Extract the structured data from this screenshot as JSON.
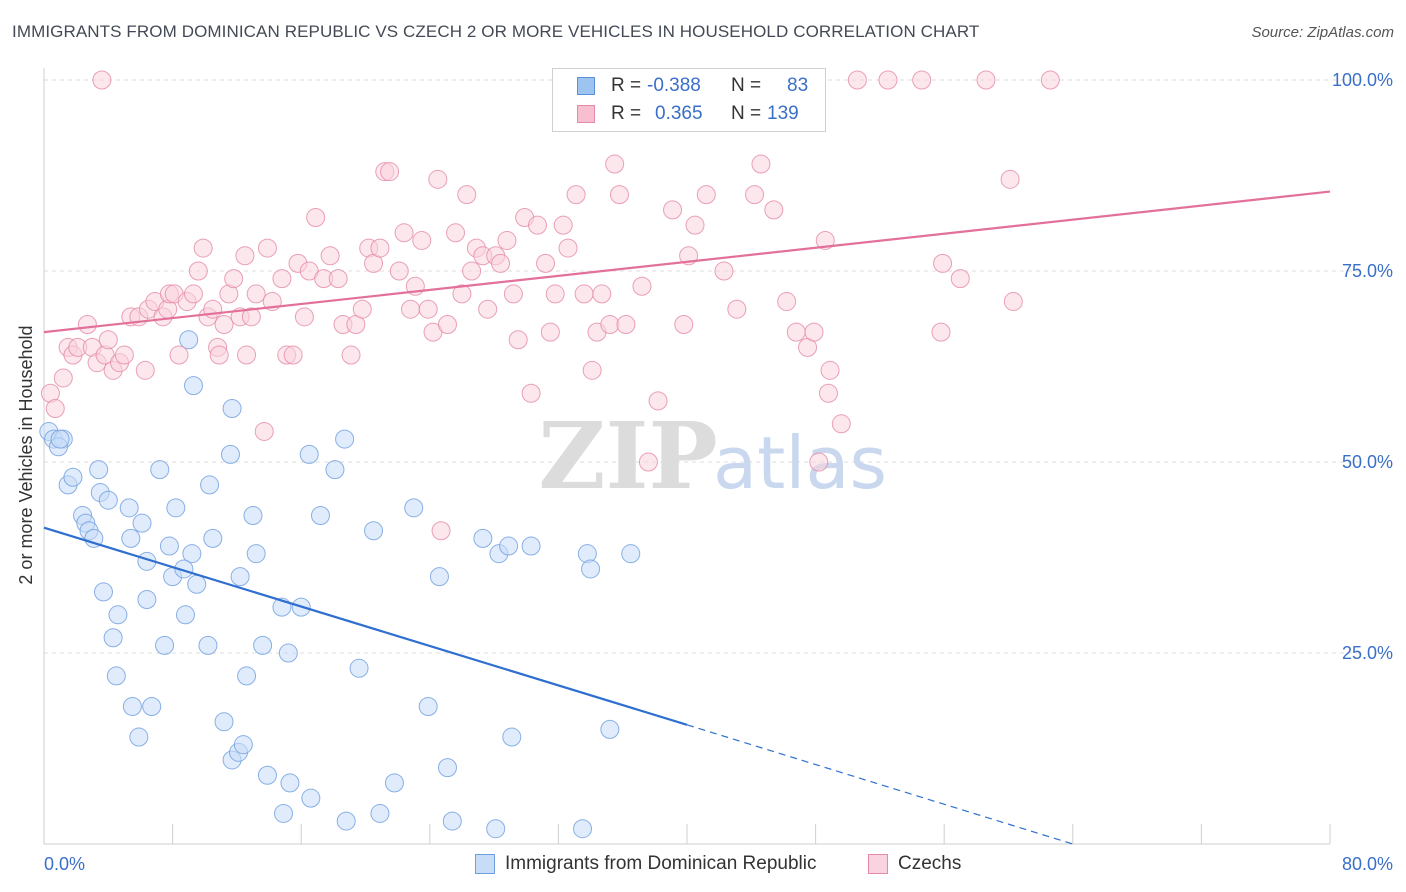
{
  "title": "IMMIGRANTS FROM DOMINICAN REPUBLIC VS CZECH 2 OR MORE VEHICLES IN HOUSEHOLD CORRELATION CHART",
  "source": "Source: ZipAtlas.com",
  "watermark": {
    "zip": "ZIP",
    "atlas": "atlas"
  },
  "legend": {
    "rows": [
      {
        "r_label": "R =",
        "r_value": "-0.388",
        "n_label": "N =",
        "n_value": "83",
        "color": "#9dc3f0",
        "border": "#5b8fd6"
      },
      {
        "r_label": "R =",
        "r_value": "0.365",
        "n_label": "N =",
        "n_value": "139",
        "color": "#f7bfd0",
        "border": "#e58aa6"
      }
    ]
  },
  "bottom_legend": {
    "items": [
      {
        "label": "Immigrants from Dominican Republic",
        "color": "#c6dcf7",
        "border": "#6e9ee0"
      },
      {
        "label": "Czechs",
        "color": "#f9d3df",
        "border": "#e58aa6"
      }
    ]
  },
  "chart_data": {
    "type": "scatter",
    "title": "IMMIGRANTS FROM DOMINICAN REPUBLIC VS CZECH 2 OR MORE VEHICLES IN HOUSEHOLD CORRELATION CHART",
    "xlabel": "",
    "ylabel": "2 or more Vehicles in Household",
    "xlim": [
      0,
      80
    ],
    "ylim": [
      0,
      100
    ],
    "x_tick_labels": [
      "0.0%",
      "80.0%"
    ],
    "y_tick_labels": [
      "25.0%",
      "50.0%",
      "75.0%",
      "100.0%"
    ],
    "y_ticks": [
      25,
      50,
      75,
      100
    ],
    "grid": true,
    "legend_position": "top-center",
    "series": [
      {
        "name": "Immigrants from Dominican Republic",
        "color": "#6e9ee0",
        "fill": "#c6dcf7",
        "trend": {
          "x0": 0,
          "y0": 41.4,
          "x1": 40,
          "y1": 15.6,
          "dash_x1": 64,
          "dash_y1": 0
        },
        "points": [
          [
            0.3,
            54
          ],
          [
            0.6,
            53
          ],
          [
            1.2,
            53
          ],
          [
            0.9,
            52
          ],
          [
            1.5,
            47
          ],
          [
            1.8,
            48
          ],
          [
            3.4,
            49
          ],
          [
            3.5,
            46
          ],
          [
            4,
            45
          ],
          [
            2.4,
            43
          ],
          [
            2.6,
            42
          ],
          [
            2.8,
            41
          ],
          [
            3.1,
            40
          ],
          [
            5.3,
            44
          ],
          [
            6.1,
            42
          ],
          [
            5.4,
            40
          ],
          [
            6.4,
            37
          ],
          [
            7.2,
            49
          ],
          [
            7.8,
            39
          ],
          [
            8,
            35
          ],
          [
            8.2,
            44
          ],
          [
            9.2,
            38
          ],
          [
            8.7,
            36
          ],
          [
            9.5,
            34
          ],
          [
            10.3,
            47
          ],
          [
            10.5,
            40
          ],
          [
            11.7,
            57
          ],
          [
            11.6,
            51
          ],
          [
            12.2,
            35
          ],
          [
            13,
            43
          ],
          [
            13.2,
            38
          ],
          [
            9,
            66
          ],
          [
            9.3,
            60
          ],
          [
            16.5,
            51
          ],
          [
            17.2,
            43
          ],
          [
            18.1,
            49
          ],
          [
            18.7,
            53
          ],
          [
            20.5,
            41
          ],
          [
            23,
            44
          ],
          [
            24.6,
            35
          ],
          [
            27.3,
            40
          ],
          [
            28.3,
            38
          ],
          [
            28.9,
            39
          ],
          [
            30.3,
            39
          ],
          [
            33.8,
            38
          ],
          [
            34,
            36
          ],
          [
            36.5,
            38
          ],
          [
            3.7,
            33
          ],
          [
            4.6,
            30
          ],
          [
            4.3,
            27
          ],
          [
            6.4,
            32
          ],
          [
            7.5,
            26
          ],
          [
            8.8,
            30
          ],
          [
            10.2,
            26
          ],
          [
            12.6,
            22
          ],
          [
            13.6,
            26
          ],
          [
            14.8,
            31
          ],
          [
            15.2,
            25
          ],
          [
            16,
            31
          ],
          [
            19.6,
            23
          ],
          [
            5.5,
            18
          ],
          [
            6.7,
            18
          ],
          [
            5.9,
            14
          ],
          [
            11.2,
            16
          ],
          [
            11.7,
            11
          ],
          [
            12.1,
            12
          ],
          [
            12.4,
            13
          ],
          [
            13.9,
            9
          ],
          [
            14.9,
            4
          ],
          [
            15.3,
            8
          ],
          [
            16.6,
            6
          ],
          [
            18.8,
            3
          ],
          [
            20.9,
            4
          ],
          [
            21.8,
            8
          ],
          [
            23.9,
            18
          ],
          [
            25.1,
            10
          ],
          [
            25.4,
            3
          ],
          [
            28.1,
            2
          ],
          [
            29.1,
            14
          ],
          [
            33.5,
            2
          ],
          [
            35.2,
            15
          ],
          [
            4.5,
            22
          ],
          [
            1,
            53
          ]
        ]
      },
      {
        "name": "Czechs",
        "color": "#e58aa6",
        "fill": "#f9d3df",
        "trend": {
          "x0": 0,
          "y0": 67.0,
          "x1": 80,
          "y1": 85.4
        },
        "points": [
          [
            0.4,
            59
          ],
          [
            0.7,
            57
          ],
          [
            1.2,
            61
          ],
          [
            1.5,
            65
          ],
          [
            1.8,
            64
          ],
          [
            2.1,
            65
          ],
          [
            2.7,
            68
          ],
          [
            3,
            65
          ],
          [
            3.3,
            63
          ],
          [
            3.8,
            64
          ],
          [
            4,
            66
          ],
          [
            4.3,
            62
          ],
          [
            4.7,
            63
          ],
          [
            5,
            64
          ],
          [
            5.4,
            69
          ],
          [
            5.9,
            69
          ],
          [
            6.5,
            70
          ],
          [
            6.9,
            71
          ],
          [
            7.4,
            69
          ],
          [
            7.7,
            70
          ],
          [
            7.8,
            72
          ],
          [
            8.1,
            72
          ],
          [
            8.4,
            64
          ],
          [
            8.9,
            71
          ],
          [
            9.3,
            72
          ],
          [
            9.6,
            75
          ],
          [
            9.9,
            78
          ],
          [
            10.2,
            69
          ],
          [
            10.5,
            70
          ],
          [
            10.8,
            65
          ],
          [
            11.2,
            68
          ],
          [
            11.5,
            72
          ],
          [
            11.8,
            74
          ],
          [
            12.2,
            69
          ],
          [
            12.5,
            77
          ],
          [
            12.9,
            69
          ],
          [
            13.2,
            72
          ],
          [
            13.7,
            54
          ],
          [
            13.9,
            78
          ],
          [
            14.2,
            71
          ],
          [
            14.8,
            74
          ],
          [
            15.1,
            64
          ],
          [
            15.5,
            64
          ],
          [
            15.8,
            76
          ],
          [
            16.2,
            69
          ],
          [
            16.5,
            75
          ],
          [
            16.9,
            82
          ],
          [
            17.4,
            74
          ],
          [
            17.8,
            77
          ],
          [
            18.3,
            74
          ],
          [
            18.6,
            68
          ],
          [
            19.1,
            64
          ],
          [
            19.4,
            68
          ],
          [
            19.8,
            70
          ],
          [
            20.2,
            78
          ],
          [
            20.5,
            76
          ],
          [
            20.9,
            78
          ],
          [
            21.2,
            88
          ],
          [
            21.5,
            88
          ],
          [
            22.1,
            75
          ],
          [
            22.4,
            80
          ],
          [
            22.8,
            70
          ],
          [
            23.1,
            73
          ],
          [
            23.5,
            79
          ],
          [
            23.9,
            70
          ],
          [
            24.2,
            67
          ],
          [
            24.5,
            87
          ],
          [
            24.7,
            41
          ],
          [
            25.1,
            68
          ],
          [
            25.6,
            80
          ],
          [
            26,
            72
          ],
          [
            26.3,
            85
          ],
          [
            26.6,
            75
          ],
          [
            26.9,
            78
          ],
          [
            27.3,
            77
          ],
          [
            27.6,
            70
          ],
          [
            28.1,
            77
          ],
          [
            28.4,
            76
          ],
          [
            28.8,
            79
          ],
          [
            29.2,
            72
          ],
          [
            29.5,
            66
          ],
          [
            29.9,
            82
          ],
          [
            30.3,
            59
          ],
          [
            30.7,
            81
          ],
          [
            31.2,
            76
          ],
          [
            31.5,
            67
          ],
          [
            31.8,
            72
          ],
          [
            32.3,
            81
          ],
          [
            32.6,
            78
          ],
          [
            33.1,
            85
          ],
          [
            33.6,
            72
          ],
          [
            34.1,
            62
          ],
          [
            34.4,
            67
          ],
          [
            34.7,
            72
          ],
          [
            35.2,
            68
          ],
          [
            35.5,
            89
          ],
          [
            35.8,
            85
          ],
          [
            36.2,
            68
          ],
          [
            37.2,
            73
          ],
          [
            37.6,
            50
          ],
          [
            38.2,
            58
          ],
          [
            39.1,
            83
          ],
          [
            39.8,
            68
          ],
          [
            40.1,
            77
          ],
          [
            40.5,
            81
          ],
          [
            41.2,
            85
          ],
          [
            42.3,
            75
          ],
          [
            43.1,
            70
          ],
          [
            44.2,
            85
          ],
          [
            44.6,
            89
          ],
          [
            45.4,
            83
          ],
          [
            46.2,
            71
          ],
          [
            46.8,
            67
          ],
          [
            47.5,
            65
          ],
          [
            47.9,
            67
          ],
          [
            48.2,
            50
          ],
          [
            48.6,
            79
          ],
          [
            48.8,
            59
          ],
          [
            48.9,
            62
          ],
          [
            49.6,
            55
          ],
          [
            50.6,
            100
          ],
          [
            52.5,
            100
          ],
          [
            54.6,
            100
          ],
          [
            55.8,
            67
          ],
          [
            55.9,
            76
          ],
          [
            57,
            74
          ],
          [
            58.6,
            100
          ],
          [
            60.1,
            87
          ],
          [
            60.3,
            71
          ],
          [
            62.6,
            100
          ],
          [
            44.5,
            100
          ],
          [
            3.6,
            100
          ],
          [
            12.6,
            64
          ],
          [
            10.9,
            64
          ],
          [
            6.3,
            62
          ]
        ]
      }
    ]
  }
}
